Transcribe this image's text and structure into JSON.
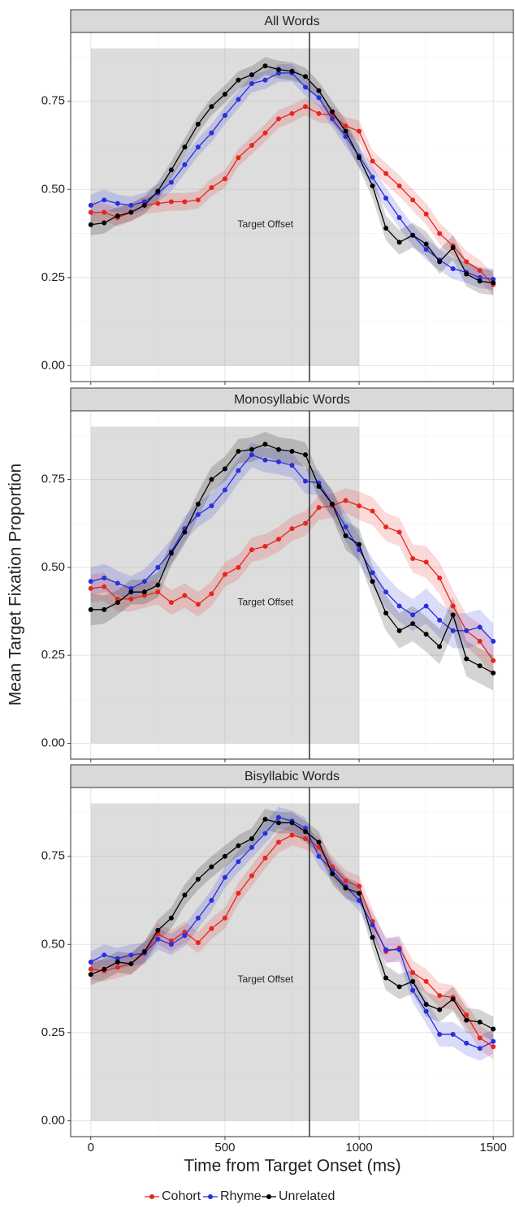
{
  "chart_data": {
    "type": "line",
    "x": [
      0,
      50,
      100,
      150,
      200,
      250,
      300,
      350,
      400,
      450,
      500,
      550,
      600,
      650,
      700,
      750,
      800,
      850,
      900,
      950,
      1000,
      1050,
      1100,
      1150,
      1200,
      1250,
      1300,
      1350,
      1400,
      1450,
      1500
    ],
    "xlim": [
      -75,
      1575
    ],
    "xticks": [
      0,
      500,
      1000,
      1500
    ],
    "minor_xticks": [
      250,
      750,
      1250
    ],
    "ylim": [
      -0.045,
      0.945
    ],
    "yticks": [
      {
        "value": 0,
        "label": "0.00"
      },
      {
        "value": 0.25,
        "label": "0.25"
      },
      {
        "value": 0.5,
        "label": "0.50"
      },
      {
        "value": 0.75,
        "label": "0.75"
      }
    ],
    "minor_yticks": [
      0.125,
      0.375,
      0.625,
      0.875
    ],
    "xlabel": "Time from Target Onset (ms)",
    "ylabel": "Mean Target Fixation Proportion",
    "shade": {
      "x": [
        0,
        1000
      ],
      "y": [
        0,
        0.9
      ]
    },
    "offset_line": 815,
    "series": [
      {
        "name": "Cohort",
        "color": "#e5261f"
      },
      {
        "name": "Rhyme",
        "color": "#2a2fdc"
      },
      {
        "name": "Unrelated",
        "color": "#000000"
      }
    ],
    "facets": [
      {
        "title": "All Words",
        "annotation": {
          "text": "Target Offset",
          "x": 651,
          "y": 0.4
        },
        "series": [
          {
            "values": [
              0.435,
              0.435,
              0.42,
              0.435,
              0.455,
              0.46,
              0.465,
              0.465,
              0.47,
              0.505,
              0.53,
              0.59,
              0.625,
              0.66,
              0.7,
              0.715,
              0.735,
              0.715,
              0.71,
              0.68,
              0.665,
              0.58,
              0.545,
              0.51,
              0.47,
              0.43,
              0.375,
              0.34,
              0.295,
              0.27,
              0.23
            ],
            "errors": [
              0.03,
              0.025,
              0.025,
              0.025,
              0.025,
              0.025,
              0.025,
              0.025,
              0.025,
              0.025,
              0.025,
              0.025,
              0.025,
              0.025,
              0.025,
              0.025,
              0.025,
              0.025,
              0.025,
              0.025,
              0.03,
              0.03,
              0.03,
              0.03,
              0.03,
              0.03,
              0.03,
              0.03,
              0.03,
              0.03,
              0.03
            ]
          },
          {
            "values": [
              0.455,
              0.47,
              0.46,
              0.455,
              0.465,
              0.49,
              0.52,
              0.57,
              0.62,
              0.66,
              0.71,
              0.755,
              0.8,
              0.81,
              0.83,
              0.83,
              0.79,
              0.76,
              0.7,
              0.65,
              0.595,
              0.535,
              0.475,
              0.42,
              0.37,
              0.33,
              0.3,
              0.275,
              0.265,
              0.25,
              0.245
            ],
            "errors": [
              0.03,
              0.03,
              0.025,
              0.025,
              0.025,
              0.025,
              0.025,
              0.025,
              0.025,
              0.025,
              0.025,
              0.025,
              0.025,
              0.025,
              0.025,
              0.025,
              0.025,
              0.025,
              0.025,
              0.03,
              0.03,
              0.03,
              0.03,
              0.03,
              0.03,
              0.03,
              0.03,
              0.03,
              0.03,
              0.03,
              0.03
            ]
          },
          {
            "values": [
              0.4,
              0.405,
              0.425,
              0.435,
              0.455,
              0.495,
              0.555,
              0.62,
              0.685,
              0.735,
              0.77,
              0.81,
              0.825,
              0.85,
              0.84,
              0.835,
              0.82,
              0.78,
              0.72,
              0.665,
              0.59,
              0.51,
              0.39,
              0.35,
              0.37,
              0.345,
              0.295,
              0.335,
              0.26,
              0.24,
              0.235
            ],
            "errors": [
              0.03,
              0.03,
              0.025,
              0.025,
              0.025,
              0.025,
              0.025,
              0.025,
              0.025,
              0.025,
              0.025,
              0.025,
              0.025,
              0.025,
              0.025,
              0.025,
              0.025,
              0.025,
              0.03,
              0.03,
              0.03,
              0.035,
              0.035,
              0.035,
              0.035,
              0.035,
              0.035,
              0.035,
              0.035,
              0.035,
              0.035
            ]
          }
        ]
      },
      {
        "title": "Monosyllabic Words",
        "annotation": {
          "text": "Target Offset",
          "x": 651,
          "y": 0.4
        },
        "series": [
          {
            "values": [
              0.44,
              0.445,
              0.41,
              0.41,
              0.42,
              0.43,
              0.4,
              0.42,
              0.395,
              0.425,
              0.48,
              0.5,
              0.55,
              0.56,
              0.58,
              0.61,
              0.625,
              0.67,
              0.675,
              0.69,
              0.675,
              0.66,
              0.615,
              0.6,
              0.525,
              0.515,
              0.47,
              0.39,
              0.32,
              0.29,
              0.235
            ],
            "errors": [
              0.04,
              0.04,
              0.035,
              0.035,
              0.035,
              0.035,
              0.035,
              0.035,
              0.035,
              0.035,
              0.035,
              0.035,
              0.035,
              0.035,
              0.035,
              0.035,
              0.035,
              0.035,
              0.035,
              0.035,
              0.04,
              0.04,
              0.04,
              0.04,
              0.04,
              0.045,
              0.045,
              0.045,
              0.045,
              0.05,
              0.05
            ]
          },
          {
            "values": [
              0.46,
              0.47,
              0.455,
              0.44,
              0.46,
              0.5,
              0.545,
              0.61,
              0.65,
              0.675,
              0.72,
              0.775,
              0.82,
              0.805,
              0.8,
              0.79,
              0.745,
              0.74,
              0.68,
              0.615,
              0.55,
              0.485,
              0.43,
              0.39,
              0.365,
              0.39,
              0.35,
              0.32,
              0.32,
              0.33,
              0.29
            ],
            "errors": [
              0.04,
              0.04,
              0.035,
              0.035,
              0.035,
              0.035,
              0.035,
              0.035,
              0.035,
              0.035,
              0.035,
              0.035,
              0.035,
              0.035,
              0.035,
              0.035,
              0.035,
              0.035,
              0.035,
              0.04,
              0.04,
              0.04,
              0.045,
              0.045,
              0.045,
              0.05,
              0.05,
              0.05,
              0.05,
              0.05,
              0.05
            ]
          },
          {
            "values": [
              0.38,
              0.38,
              0.4,
              0.43,
              0.43,
              0.45,
              0.54,
              0.6,
              0.68,
              0.75,
              0.78,
              0.83,
              0.835,
              0.85,
              0.835,
              0.83,
              0.82,
              0.73,
              0.68,
              0.59,
              0.565,
              0.46,
              0.37,
              0.32,
              0.34,
              0.31,
              0.275,
              0.365,
              0.24,
              0.22,
              0.2
            ],
            "errors": [
              0.045,
              0.04,
              0.035,
              0.035,
              0.035,
              0.035,
              0.035,
              0.035,
              0.035,
              0.035,
              0.035,
              0.035,
              0.035,
              0.035,
              0.035,
              0.035,
              0.035,
              0.035,
              0.04,
              0.04,
              0.045,
              0.045,
              0.05,
              0.05,
              0.05,
              0.05,
              0.05,
              0.05,
              0.05,
              0.05,
              0.05
            ]
          }
        ]
      },
      {
        "title": "Bisyllabic Words",
        "annotation": {
          "text": "Target Offset",
          "x": 651,
          "y": 0.4
        },
        "series": [
          {
            "values": [
              0.43,
              0.425,
              0.435,
              0.445,
              0.475,
              0.53,
              0.51,
              0.535,
              0.505,
              0.545,
              0.575,
              0.645,
              0.695,
              0.745,
              0.79,
              0.81,
              0.8,
              0.775,
              0.72,
              0.68,
              0.665,
              0.565,
              0.48,
              0.49,
              0.42,
              0.395,
              0.355,
              0.35,
              0.3,
              0.235,
              0.21
            ],
            "errors": [
              0.03,
              0.03,
              0.03,
              0.03,
              0.03,
              0.03,
              0.03,
              0.03,
              0.03,
              0.03,
              0.03,
              0.03,
              0.03,
              0.03,
              0.03,
              0.03,
              0.03,
              0.03,
              0.03,
              0.03,
              0.03,
              0.035,
              0.035,
              0.035,
              0.035,
              0.035,
              0.035,
              0.035,
              0.035,
              0.035,
              0.035
            ]
          },
          {
            "values": [
              0.45,
              0.47,
              0.46,
              0.47,
              0.475,
              0.515,
              0.5,
              0.525,
              0.575,
              0.625,
              0.69,
              0.735,
              0.775,
              0.815,
              0.86,
              0.85,
              0.83,
              0.75,
              0.71,
              0.665,
              0.625,
              0.555,
              0.485,
              0.485,
              0.37,
              0.31,
              0.245,
              0.245,
              0.22,
              0.205,
              0.225
            ],
            "errors": [
              0.03,
              0.03,
              0.03,
              0.03,
              0.03,
              0.03,
              0.03,
              0.03,
              0.03,
              0.03,
              0.03,
              0.03,
              0.03,
              0.03,
              0.03,
              0.03,
              0.03,
              0.03,
              0.03,
              0.03,
              0.03,
              0.035,
              0.035,
              0.035,
              0.035,
              0.035,
              0.035,
              0.035,
              0.035,
              0.035,
              0.035
            ]
          },
          {
            "values": [
              0.415,
              0.43,
              0.45,
              0.445,
              0.48,
              0.54,
              0.575,
              0.64,
              0.685,
              0.72,
              0.75,
              0.78,
              0.8,
              0.855,
              0.845,
              0.845,
              0.82,
              0.79,
              0.7,
              0.66,
              0.645,
              0.52,
              0.405,
              0.38,
              0.395,
              0.33,
              0.315,
              0.345,
              0.285,
              0.28,
              0.26
            ],
            "errors": [
              0.03,
              0.03,
              0.03,
              0.03,
              0.03,
              0.03,
              0.03,
              0.03,
              0.03,
              0.03,
              0.03,
              0.03,
              0.03,
              0.03,
              0.03,
              0.03,
              0.03,
              0.03,
              0.03,
              0.03,
              0.03,
              0.035,
              0.035,
              0.035,
              0.035,
              0.035,
              0.035,
              0.035,
              0.035,
              0.035,
              0.035
            ]
          }
        ]
      }
    ]
  }
}
